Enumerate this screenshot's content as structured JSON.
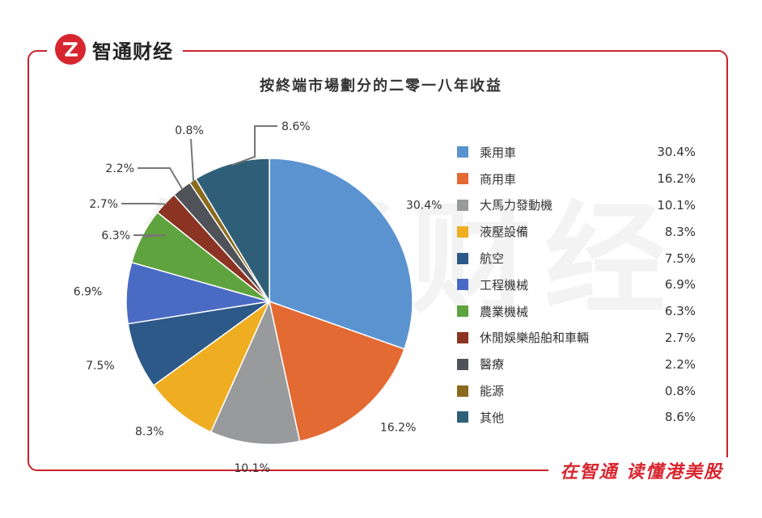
{
  "brand": {
    "name": "智通财经",
    "slogan": "在智通  读懂港美股"
  },
  "chart_data": {
    "type": "pie",
    "title": "按終端市場劃分的二零一八年收益",
    "slices": [
      {
        "label": "乘用車",
        "value": 30.4,
        "value_label": "30.4%",
        "color": "#5b93d1"
      },
      {
        "label": "商用車",
        "value": 16.2,
        "value_label": "16.2%",
        "color": "#e36a32"
      },
      {
        "label": "大馬力發動機",
        "value": 10.1,
        "value_label": "10.1%",
        "color": "#999a9c"
      },
      {
        "label": "液壓設備",
        "value": 8.3,
        "value_label": "8.3%",
        "color": "#efad21"
      },
      {
        "label": "航空",
        "value": 7.5,
        "value_label": "7.5%",
        "color": "#2d5989"
      },
      {
        "label": "工程機械",
        "value": 6.9,
        "value_label": "6.9%",
        "color": "#4a6bc4"
      },
      {
        "label": "農業機械",
        "value": 6.3,
        "value_label": "6.3%",
        "color": "#5ea33e"
      },
      {
        "label": "休閒娛樂船舶和車輛",
        "value": 2.7,
        "value_label": "2.7%",
        "color": "#8c3423"
      },
      {
        "label": "醫療",
        "value": 2.2,
        "value_label": "2.2%",
        "color": "#4f5258"
      },
      {
        "label": "能源",
        "value": 0.8,
        "value_label": "0.8%",
        "color": "#8a6a1d"
      },
      {
        "label": "其他",
        "value": 8.6,
        "value_label": "8.6%",
        "color": "#2f5f78"
      }
    ],
    "legend_position": "right"
  }
}
